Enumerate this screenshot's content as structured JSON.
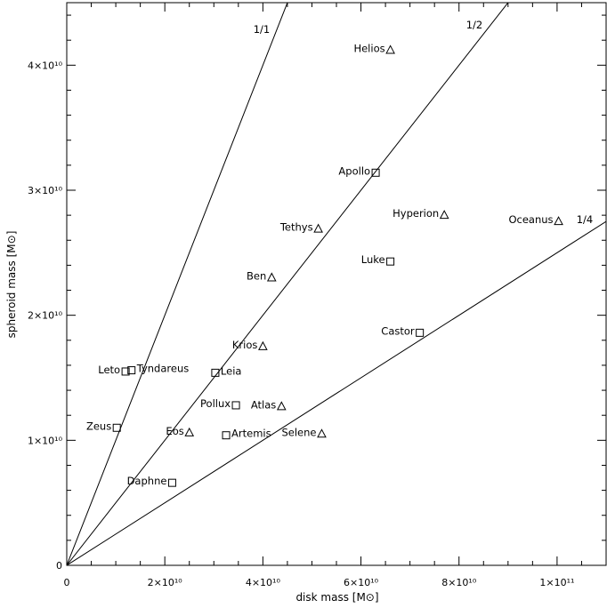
{
  "chart_data": {
    "type": "scatter",
    "xlabel": "disk mass [M⊙]",
    "ylabel": "spheroid mass [M⊙]",
    "xlim": [
      0,
      110000000000.0
    ],
    "ylim": [
      0,
      45000000000.0
    ],
    "x_tick_labels": [
      "0",
      "2×10¹⁰",
      "4×10¹⁰",
      "6×10¹⁰",
      "8×10¹⁰",
      "1×10¹¹"
    ],
    "y_tick_labels": [
      "0",
      "1×10¹⁰",
      "2×10¹⁰",
      "3×10¹⁰",
      "4×10¹⁰"
    ],
    "ratio_lines": [
      {
        "label": "1/1",
        "slope": 1.0
      },
      {
        "label": "1/2",
        "slope": 0.5
      },
      {
        "label": "1/4",
        "slope": 0.25
      }
    ],
    "series": [
      {
        "marker": "square",
        "points": [
          {
            "name": "Apollo",
            "x": 63000000000.0,
            "y": 31400000000.0
          },
          {
            "name": "Luke",
            "x": 66000000000.0,
            "y": 24300000000.0
          },
          {
            "name": "Castor",
            "x": 72000000000.0,
            "y": 18600000000.0
          },
          {
            "name": "Leto",
            "x": 12000000000.0,
            "y": 15500000000.0
          },
          {
            "name": "Tyndareus",
            "x": 13200000000.0,
            "y": 15600000000.0
          },
          {
            "name": "Leia",
            "x": 30300000000.0,
            "y": 15400000000.0
          },
          {
            "name": "Pollux",
            "x": 34500000000.0,
            "y": 12800000000.0
          },
          {
            "name": "Zeus",
            "x": 10200000000.0,
            "y": 11000000000.0
          },
          {
            "name": "Artemis",
            "x": 32500000000.0,
            "y": 10400000000.0
          },
          {
            "name": "Daphne",
            "x": 21500000000.0,
            "y": 6600000000.0
          }
        ]
      },
      {
        "marker": "triangle",
        "points": [
          {
            "name": "Helios",
            "x": 66000000000.0,
            "y": 41200000000.0
          },
          {
            "name": "Hyperion",
            "x": 77000000000.0,
            "y": 28000000000.0
          },
          {
            "name": "Oceanus",
            "x": 100300000000.0,
            "y": 27500000000.0
          },
          {
            "name": "Tethys",
            "x": 51300000000.0,
            "y": 26900000000.0
          },
          {
            "name": "Ben",
            "x": 41800000000.0,
            "y": 23000000000.0
          },
          {
            "name": "Krios",
            "x": 40000000000.0,
            "y": 17500000000.0
          },
          {
            "name": "Atlas",
            "x": 43800000000.0,
            "y": 12700000000.0
          },
          {
            "name": "Eos",
            "x": 25000000000.0,
            "y": 10600000000.0
          },
          {
            "name": "Selene",
            "x": 52000000000.0,
            "y": 10500000000.0
          }
        ]
      }
    ]
  }
}
